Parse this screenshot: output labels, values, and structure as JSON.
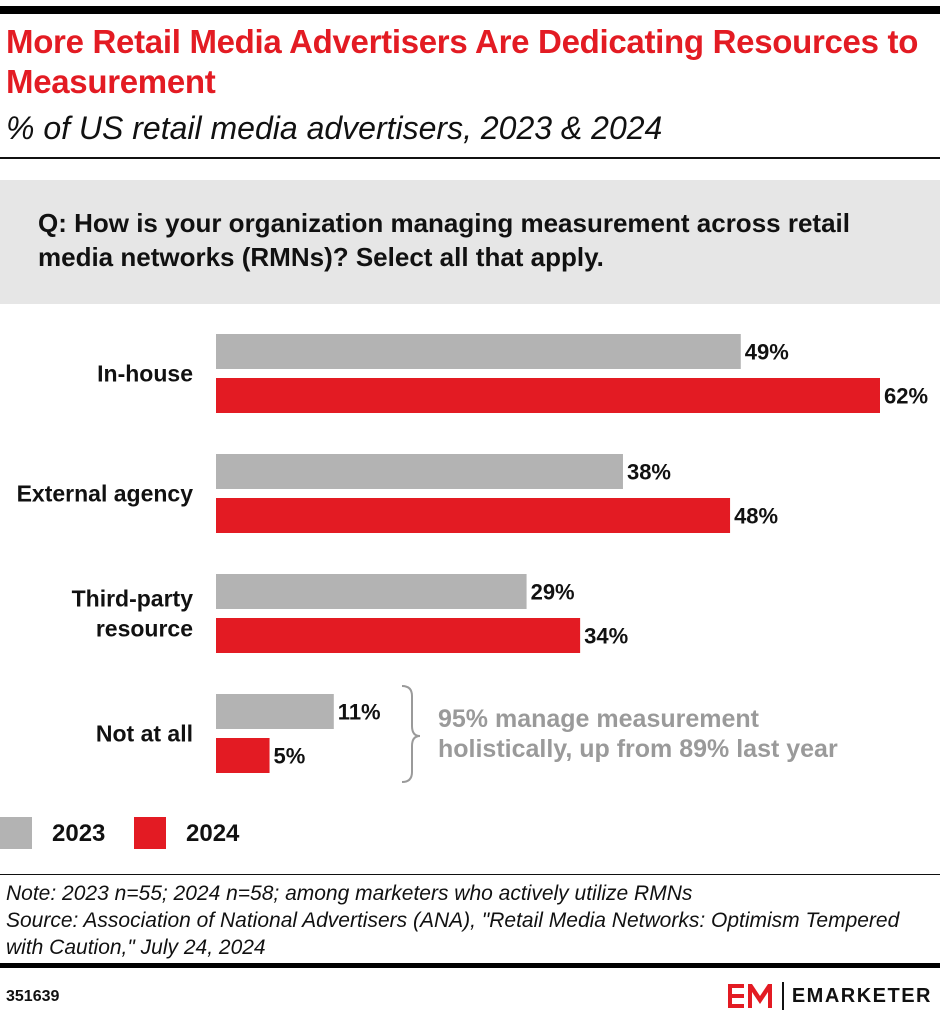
{
  "header": {
    "title": "More Retail Media Advertisers Are Dedicating Resources to Measurement",
    "subtitle": "% of US retail media advertisers, 2023 & 2024"
  },
  "question": "Q: How is your organization managing measurement across retail media networks (RMNs)? Select all that apply.",
  "chart_data": {
    "type": "bar",
    "orientation": "horizontal",
    "categories": [
      "In-house",
      "External agency",
      "Third-party resource",
      "Not at all"
    ],
    "category_lines": [
      [
        "In-house"
      ],
      [
        "External agency"
      ],
      [
        "Third-party",
        "resource"
      ],
      [
        "Not at all"
      ]
    ],
    "series": [
      {
        "name": "2023",
        "values": [
          49,
          38,
          29,
          11
        ],
        "labels": [
          "49%",
          "38%",
          "29%",
          "11%"
        ],
        "color": "#b3b3b3"
      },
      {
        "name": "2024",
        "values": [
          62,
          48,
          34,
          5
        ],
        "labels": [
          "62%",
          "48%",
          "34%",
          "5%"
        ],
        "color": "#e31b23"
      }
    ],
    "xlim": [
      0,
      62
    ],
    "annotation": [
      "95% manage measurement",
      "holistically, up from 89% last year"
    ],
    "legend_position": "bottom-left",
    "grid": false
  },
  "footer": {
    "note": "Note: 2023 n=55; 2024 n=58; among marketers who actively utilize RMNs",
    "source": "Source: Association of National Advertisers (ANA), \"Retail Media Networks: Optimism Tempered with Caution,\" July 24, 2024",
    "chart_id": "351639",
    "brand": "EMARKETER"
  },
  "colors": {
    "accent": "#e31b23",
    "gray": "#b3b3b3"
  }
}
